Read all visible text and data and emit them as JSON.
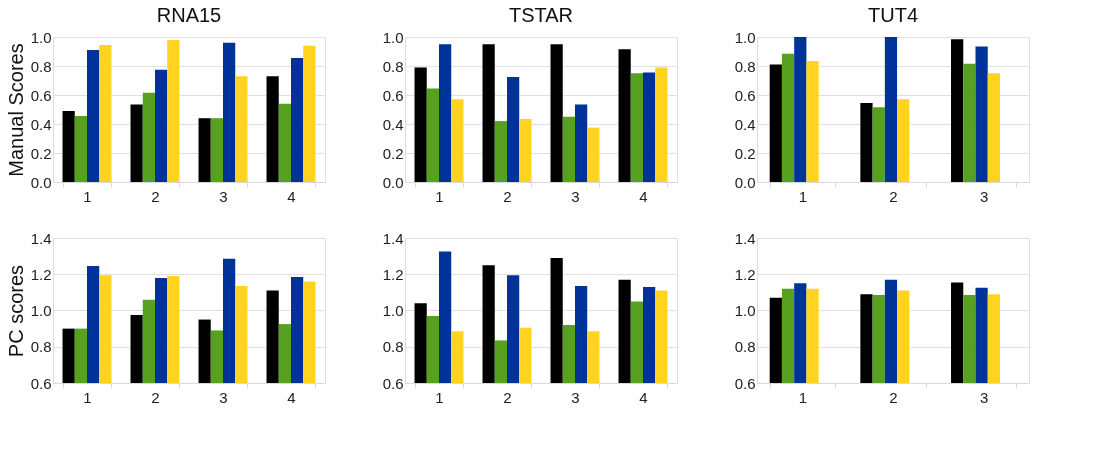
{
  "chart_data": [
    {
      "type": "bar",
      "title": "RNA15",
      "ylabel": "Manual Scores",
      "categories": [
        "1",
        "2",
        "3",
        "4"
      ],
      "ylim": [
        0,
        1
      ],
      "yticks": [
        {
          "value": 0,
          "label": "0.0"
        },
        {
          "value": 0.2,
          "label": "0.2"
        },
        {
          "value": 0.4,
          "label": "0.4"
        },
        {
          "value": 0.6,
          "label": "0.6"
        },
        {
          "value": 0.8,
          "label": "0.8"
        },
        {
          "value": 1,
          "label": "1.0"
        }
      ],
      "grid": "y",
      "series": [
        {
          "color": "#000000",
          "values": [
            0.49,
            0.535,
            0.44,
            0.73
          ]
        },
        {
          "color": "#57a020",
          "values": [
            0.455,
            0.615,
            0.44,
            0.54
          ]
        },
        {
          "color": "#003399",
          "values": [
            0.91,
            0.775,
            0.96,
            0.855
          ]
        },
        {
          "color": "#ffd320",
          "values": [
            0.945,
            0.98,
            0.73,
            0.94
          ]
        }
      ]
    },
    {
      "type": "bar",
      "title": "TSTAR",
      "categories": [
        "1",
        "2",
        "3",
        "4"
      ],
      "ylim": [
        0,
        1
      ],
      "yticks": [
        {
          "value": 0,
          "label": "0.0"
        },
        {
          "value": 0.2,
          "label": "0.2"
        },
        {
          "value": 0.4,
          "label": "0.4"
        },
        {
          "value": 0.6,
          "label": "0.6"
        },
        {
          "value": 0.8,
          "label": "0.8"
        },
        {
          "value": 1,
          "label": "1.0"
        }
      ],
      "grid": "y",
      "series": [
        {
          "color": "#000000",
          "values": [
            0.79,
            0.95,
            0.95,
            0.915
          ]
        },
        {
          "color": "#57a020",
          "values": [
            0.645,
            0.42,
            0.45,
            0.75
          ]
        },
        {
          "color": "#003399",
          "values": [
            0.95,
            0.725,
            0.535,
            0.755
          ]
        },
        {
          "color": "#ffd320",
          "values": [
            0.57,
            0.435,
            0.375,
            0.79
          ]
        }
      ]
    },
    {
      "type": "bar",
      "title": "TUT4",
      "categories": [
        "1",
        "2",
        "3"
      ],
      "ylim": [
        0,
        1
      ],
      "yticks": [
        {
          "value": 0,
          "label": "0.0"
        },
        {
          "value": 0.2,
          "label": "0.2"
        },
        {
          "value": 0.4,
          "label": "0.4"
        },
        {
          "value": 0.6,
          "label": "0.6"
        },
        {
          "value": 0.8,
          "label": "0.8"
        },
        {
          "value": 1,
          "label": "1.0"
        }
      ],
      "grid": "y",
      "series": [
        {
          "color": "#000000",
          "values": [
            0.81,
            0.545,
            0.985
          ]
        },
        {
          "color": "#57a020",
          "values": [
            0.885,
            0.515,
            0.815
          ]
        },
        {
          "color": "#003399",
          "values": [
            1.0,
            1.0,
            0.935
          ]
        },
        {
          "color": "#ffd320",
          "values": [
            0.835,
            0.57,
            0.75
          ]
        }
      ]
    },
    {
      "type": "bar",
      "ylabel": "PC scores",
      "categories": [
        "1",
        "2",
        "3",
        "4"
      ],
      "ylim": [
        0.6,
        1.4
      ],
      "yticks": [
        0.6,
        0.8,
        {
          "value": 1,
          "label": "1.0"
        },
        1.2,
        1.4
      ],
      "grid": "y",
      "series": [
        {
          "color": "#000000",
          "values": [
            0.9,
            0.975,
            0.95,
            1.11
          ]
        },
        {
          "color": "#57a020",
          "values": [
            0.9,
            1.06,
            0.89,
            0.925
          ]
        },
        {
          "color": "#003399",
          "values": [
            1.245,
            1.18,
            1.285,
            1.185
          ]
        },
        {
          "color": "#ffd320",
          "values": [
            1.195,
            1.19,
            1.135,
            1.16
          ]
        }
      ]
    },
    {
      "type": "bar",
      "categories": [
        "1",
        "2",
        "3",
        "4"
      ],
      "ylim": [
        0.6,
        1.4
      ],
      "yticks": [
        0.6,
        0.8,
        {
          "value": 1,
          "label": "1.0"
        },
        1.2,
        1.4
      ],
      "grid": "y",
      "series": [
        {
          "color": "#000000",
          "values": [
            1.04,
            1.25,
            1.29,
            1.17
          ]
        },
        {
          "color": "#57a020",
          "values": [
            0.97,
            0.835,
            0.92,
            1.05
          ]
        },
        {
          "color": "#003399",
          "values": [
            1.325,
            1.195,
            1.135,
            1.13
          ]
        },
        {
          "color": "#ffd320",
          "values": [
            0.885,
            0.905,
            0.885,
            1.11
          ]
        }
      ]
    },
    {
      "type": "bar",
      "categories": [
        "1",
        "2",
        "3"
      ],
      "ylim": [
        0.6,
        1.4
      ],
      "yticks": [
        0.6,
        0.8,
        {
          "value": 1,
          "label": "1.0"
        },
        1.2,
        1.4
      ],
      "grid": "y",
      "series": [
        {
          "color": "#000000",
          "values": [
            1.07,
            1.09,
            1.155
          ]
        },
        {
          "color": "#57a020",
          "values": [
            1.12,
            1.085,
            1.085
          ]
        },
        {
          "color": "#003399",
          "values": [
            1.15,
            1.17,
            1.125
          ]
        },
        {
          "color": "#ffd320",
          "values": [
            1.12,
            1.11,
            1.09
          ]
        }
      ]
    }
  ]
}
